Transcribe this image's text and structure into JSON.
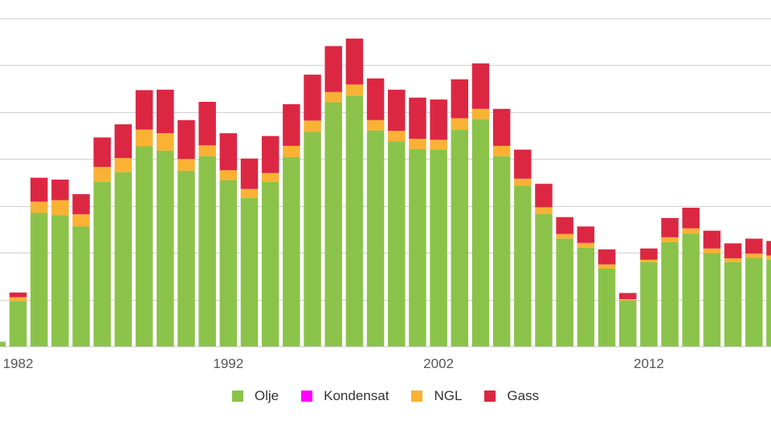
{
  "chart_data": {
    "type": "bar",
    "stacked": true,
    "title": "",
    "xlabel": "",
    "ylabel": "",
    "x": [
      1981,
      1982,
      1983,
      1984,
      1985,
      1986,
      1987,
      1988,
      1989,
      1990,
      1991,
      1992,
      1993,
      1994,
      1995,
      1996,
      1997,
      1998,
      1999,
      2000,
      2001,
      2002,
      2003,
      2004,
      2005,
      2006,
      2007,
      2008,
      2009,
      2010,
      2011,
      2012,
      2013,
      2014,
      2015,
      2016,
      2017,
      2018
    ],
    "x_tick_labels": [
      "1982",
      "1992",
      "2002",
      "2012"
    ],
    "x_tick_values": [
      1982,
      1992,
      2002,
      2012
    ],
    "ylim": [
      0,
      70
    ],
    "y_gridlines": [
      0,
      10,
      20,
      30,
      40,
      50,
      60,
      70
    ],
    "grid": true,
    "series": [
      {
        "name": "Olje",
        "color": "#8bc34a",
        "values": [
          1,
          9.7,
          28.5,
          28,
          25.6,
          35.1,
          37.2,
          42.7,
          41.8,
          37.5,
          40.6,
          35.5,
          31.7,
          35.1,
          40.4,
          45.8,
          52.1,
          53.5,
          46.1,
          43.8,
          42.1,
          42,
          46.2,
          48.5,
          40.6,
          34.3,
          28.3,
          23,
          21.1,
          16.6,
          9.8,
          18,
          22.3,
          24.1,
          19.9,
          18,
          18.9,
          18.5
        ]
      },
      {
        "name": "Kondensat",
        "color": "#ff00ff",
        "values": [
          0,
          0,
          0,
          0,
          0,
          0,
          0,
          0,
          0,
          0,
          0,
          0,
          0,
          0,
          0,
          0,
          0,
          0,
          0,
          0,
          0,
          0,
          0,
          0,
          0,
          0,
          0,
          0,
          0,
          0,
          0,
          0,
          0,
          0,
          0,
          0,
          0,
          0
        ]
      },
      {
        "name": "NGL",
        "color": "#f9b233",
        "values": [
          0,
          0.8,
          2.4,
          3.2,
          2.6,
          3.2,
          3,
          3.6,
          3.7,
          2.5,
          2.3,
          2.1,
          1.9,
          1.9,
          2.4,
          2.4,
          2.2,
          2.4,
          2.2,
          2.2,
          2.2,
          2.1,
          2.5,
          2.2,
          2.2,
          1.5,
          1.4,
          1,
          1,
          0.9,
          0.3,
          0.5,
          1,
          1.1,
          1,
          0.8,
          0.9,
          0.9
        ]
      },
      {
        "name": "Gass",
        "color": "#dc2743",
        "values": [
          0,
          1,
          5.1,
          4.4,
          4.3,
          6.3,
          7.2,
          8.4,
          9.3,
          8.3,
          9.3,
          7.9,
          6.5,
          7.9,
          8.9,
          9.8,
          9.8,
          9.8,
          8.9,
          8.8,
          8.8,
          8.6,
          8.3,
          9.7,
          7.9,
          6.2,
          5,
          3.6,
          3.5,
          3.2,
          1.3,
          2.4,
          4.1,
          4.4,
          3.8,
          3.2,
          3.2,
          3.1
        ]
      }
    ],
    "legend": {
      "position": "bottom-center",
      "entries": [
        "Olje",
        "Kondensat",
        "NGL",
        "Gass"
      ]
    }
  }
}
